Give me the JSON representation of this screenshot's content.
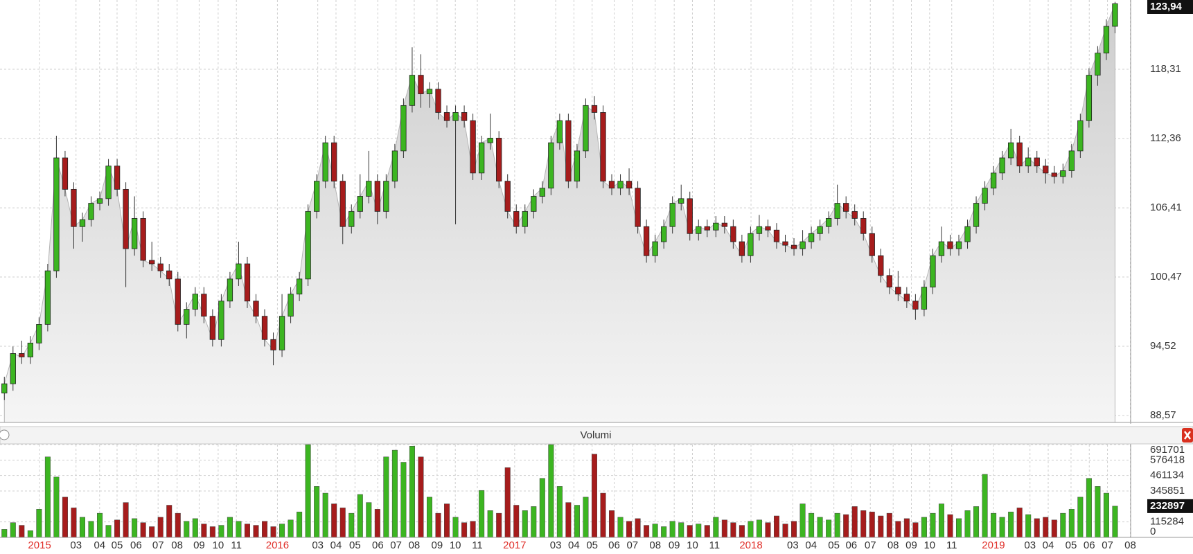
{
  "chart_data": {
    "type": "candlestick",
    "ohlc": [
      [
        90.5,
        91.9,
        89.9,
        91.3
      ],
      [
        91.3,
        94.5,
        90.7,
        93.9
      ],
      [
        93.9,
        95.0,
        93.0,
        93.6
      ],
      [
        93.6,
        95.4,
        93.0,
        94.8
      ],
      [
        94.8,
        97.0,
        94.2,
        96.4
      ],
      [
        96.4,
        101.6,
        95.8,
        101.0
      ],
      [
        101.0,
        112.6,
        100.4,
        110.7
      ],
      [
        110.7,
        111.3,
        107.4,
        108.0
      ],
      [
        108.0,
        108.6,
        102.9,
        104.8
      ],
      [
        104.8,
        106.0,
        103.5,
        105.4
      ],
      [
        105.4,
        107.4,
        104.8,
        106.8
      ],
      [
        106.8,
        107.8,
        106.2,
        107.2
      ],
      [
        107.2,
        110.6,
        106.6,
        110.0
      ],
      [
        110.0,
        110.6,
        107.4,
        108.0
      ],
      [
        108.0,
        108.6,
        99.6,
        102.9
      ],
      [
        102.9,
        107.4,
        102.3,
        105.5
      ],
      [
        105.5,
        106.1,
        101.3,
        101.9
      ],
      [
        101.9,
        103.5,
        101.0,
        101.6
      ],
      [
        101.6,
        102.2,
        100.4,
        101.0
      ],
      [
        101.0,
        101.6,
        99.7,
        100.3
      ],
      [
        100.3,
        100.9,
        95.8,
        96.4
      ],
      [
        96.4,
        98.3,
        95.2,
        97.7
      ],
      [
        97.7,
        99.6,
        97.1,
        99.0
      ],
      [
        99.0,
        99.6,
        96.5,
        97.1
      ],
      [
        97.1,
        97.7,
        94.5,
        95.1
      ],
      [
        95.1,
        99.0,
        94.5,
        98.4
      ],
      [
        98.4,
        100.9,
        97.8,
        100.3
      ],
      [
        100.3,
        103.5,
        99.7,
        101.6
      ],
      [
        101.6,
        102.2,
        97.8,
        98.4
      ],
      [
        98.4,
        99.0,
        96.5,
        97.1
      ],
      [
        97.1,
        97.7,
        94.5,
        95.1
      ],
      [
        95.1,
        95.7,
        92.9,
        94.2
      ],
      [
        94.2,
        99.0,
        93.6,
        97.1
      ],
      [
        97.1,
        99.6,
        96.5,
        99.0
      ],
      [
        99.0,
        100.9,
        98.4,
        100.3
      ],
      [
        100.3,
        106.7,
        99.7,
        106.1
      ],
      [
        106.1,
        109.3,
        105.5,
        108.7
      ],
      [
        108.7,
        112.6,
        108.1,
        112.0
      ],
      [
        112.0,
        112.6,
        108.1,
        108.7
      ],
      [
        108.7,
        109.3,
        103.3,
        104.8
      ],
      [
        104.8,
        106.7,
        104.2,
        106.1
      ],
      [
        106.1,
        109.3,
        105.5,
        107.4
      ],
      [
        107.4,
        111.3,
        106.8,
        108.7
      ],
      [
        108.7,
        109.3,
        105.0,
        106.1
      ],
      [
        106.1,
        109.3,
        105.5,
        108.7
      ],
      [
        108.7,
        111.9,
        108.1,
        111.3
      ],
      [
        111.3,
        115.8,
        110.7,
        115.2
      ],
      [
        115.2,
        120.2,
        114.6,
        117.8
      ],
      [
        117.8,
        119.6,
        115.0,
        116.2
      ],
      [
        116.2,
        117.2,
        115.0,
        116.6
      ],
      [
        116.6,
        117.2,
        114.0,
        114.6
      ],
      [
        114.6,
        115.2,
        113.3,
        113.9
      ],
      [
        113.9,
        115.2,
        105.0,
        114.6
      ],
      [
        114.6,
        115.2,
        113.3,
        113.9
      ],
      [
        113.9,
        114.5,
        108.8,
        109.4
      ],
      [
        109.4,
        112.6,
        108.8,
        112.0
      ],
      [
        112.0,
        114.5,
        111.4,
        112.4
      ],
      [
        112.4,
        113.0,
        108.1,
        108.7
      ],
      [
        108.7,
        109.3,
        105.5,
        106.1
      ],
      [
        106.1,
        106.7,
        104.2,
        104.8
      ],
      [
        104.8,
        106.7,
        104.2,
        106.1
      ],
      [
        106.1,
        108.0,
        105.5,
        107.4
      ],
      [
        107.4,
        108.7,
        106.8,
        108.1
      ],
      [
        108.1,
        112.6,
        107.5,
        112.0
      ],
      [
        112.0,
        114.5,
        111.4,
        113.9
      ],
      [
        113.9,
        114.5,
        108.1,
        108.7
      ],
      [
        108.7,
        111.9,
        108.1,
        111.3
      ],
      [
        111.3,
        115.8,
        110.7,
        115.2
      ],
      [
        115.2,
        116.0,
        114.0,
        114.6
      ],
      [
        114.6,
        115.2,
        108.1,
        108.7
      ],
      [
        108.7,
        109.3,
        107.5,
        108.1
      ],
      [
        108.1,
        109.3,
        107.5,
        108.7
      ],
      [
        108.7,
        109.8,
        107.5,
        108.1
      ],
      [
        108.1,
        108.7,
        104.2,
        104.8
      ],
      [
        104.8,
        105.4,
        101.7,
        102.3
      ],
      [
        102.3,
        104.1,
        101.7,
        103.5
      ],
      [
        103.5,
        105.4,
        102.9,
        104.8
      ],
      [
        104.8,
        107.4,
        104.2,
        106.8
      ],
      [
        106.8,
        108.4,
        106.2,
        107.2
      ],
      [
        107.2,
        107.8,
        103.6,
        104.2
      ],
      [
        104.2,
        105.4,
        103.6,
        104.8
      ],
      [
        104.8,
        105.4,
        103.9,
        104.5
      ],
      [
        104.5,
        105.7,
        103.9,
        105.1
      ],
      [
        105.1,
        105.7,
        104.2,
        104.8
      ],
      [
        104.8,
        105.4,
        102.9,
        103.5
      ],
      [
        103.5,
        104.1,
        101.7,
        102.3
      ],
      [
        102.3,
        104.8,
        101.7,
        104.2
      ],
      [
        104.2,
        105.8,
        103.6,
        104.8
      ],
      [
        104.8,
        105.4,
        103.9,
        104.5
      ],
      [
        104.5,
        105.1,
        102.9,
        103.5
      ],
      [
        103.5,
        104.1,
        102.6,
        103.2
      ],
      [
        103.2,
        103.8,
        102.3,
        102.9
      ],
      [
        102.9,
        104.5,
        102.3,
        103.5
      ],
      [
        103.5,
        104.8,
        102.9,
        104.2
      ],
      [
        104.2,
        105.4,
        103.6,
        104.8
      ],
      [
        104.8,
        106.1,
        104.2,
        105.5
      ],
      [
        105.5,
        108.4,
        104.9,
        106.8
      ],
      [
        106.8,
        107.4,
        105.5,
        106.1
      ],
      [
        106.1,
        106.7,
        104.9,
        105.5
      ],
      [
        105.5,
        106.1,
        103.6,
        104.2
      ],
      [
        104.2,
        104.8,
        101.7,
        102.3
      ],
      [
        102.3,
        102.9,
        100.0,
        100.6
      ],
      [
        100.6,
        101.2,
        99.0,
        99.6
      ],
      [
        99.6,
        101.0,
        98.4,
        99.0
      ],
      [
        99.0,
        99.6,
        97.8,
        98.4
      ],
      [
        98.4,
        99.0,
        96.8,
        97.7
      ],
      [
        97.7,
        100.2,
        97.1,
        99.6
      ],
      [
        99.6,
        102.9,
        99.0,
        102.3
      ],
      [
        102.3,
        104.8,
        101.7,
        103.5
      ],
      [
        103.5,
        104.1,
        102.3,
        102.9
      ],
      [
        102.9,
        104.1,
        102.3,
        103.5
      ],
      [
        103.5,
        105.4,
        102.9,
        104.8
      ],
      [
        104.8,
        107.4,
        104.2,
        106.8
      ],
      [
        106.8,
        108.7,
        106.2,
        108.1
      ],
      [
        108.1,
        110.0,
        107.5,
        109.4
      ],
      [
        109.4,
        111.3,
        108.8,
        110.7
      ],
      [
        110.7,
        113.2,
        110.1,
        112.0
      ],
      [
        112.0,
        112.6,
        109.4,
        110.0
      ],
      [
        110.0,
        111.6,
        109.4,
        110.7
      ],
      [
        110.7,
        111.3,
        109.4,
        110.0
      ],
      [
        110.0,
        110.6,
        108.5,
        109.4
      ],
      [
        109.4,
        110.0,
        108.5,
        109.1
      ],
      [
        109.1,
        110.2,
        108.5,
        109.6
      ],
      [
        109.6,
        111.9,
        109.0,
        111.3
      ],
      [
        111.3,
        114.5,
        110.7,
        113.9
      ],
      [
        113.9,
        118.4,
        113.3,
        117.8
      ],
      [
        117.8,
        120.3,
        116.9,
        119.7
      ],
      [
        119.7,
        122.6,
        119.1,
        122.0
      ],
      [
        122.0,
        124.1,
        121.4,
        123.94
      ]
    ],
    "up_color": "#3cb521",
    "down_color": "#a61c1c",
    "grid": true,
    "ylim": [
      87.98,
      124.26
    ],
    "yticks": [
      {
        "value": 88.57,
        "label": "88,57"
      },
      {
        "value": 94.52,
        "label": "94,52"
      },
      {
        "value": 100.47,
        "label": "100,47"
      },
      {
        "value": 106.41,
        "label": "106,41"
      },
      {
        "value": 112.36,
        "label": "112,36"
      },
      {
        "value": 118.31,
        "label": "118,31"
      }
    ],
    "last_price_label": "123,94",
    "xlim": [
      0,
      130.3
    ],
    "xticks": [
      {
        "value": 4.56,
        "label": "2015"
      },
      {
        "value": 8.76,
        "label": "03"
      },
      {
        "value": 11.48,
        "label": "04"
      },
      {
        "value": 13.49,
        "label": "05"
      },
      {
        "value": 15.68,
        "label": "06"
      },
      {
        "value": 18.22,
        "label": "07"
      },
      {
        "value": 20.41,
        "label": "08"
      },
      {
        "value": 22.95,
        "label": "09"
      },
      {
        "value": 25.14,
        "label": "10"
      },
      {
        "value": 27.24,
        "label": "11"
      },
      {
        "value": 31.97,
        "label": "2016"
      },
      {
        "value": 36.62,
        "label": "03"
      },
      {
        "value": 38.72,
        "label": "04"
      },
      {
        "value": 40.91,
        "label": "05"
      },
      {
        "value": 43.54,
        "label": "06"
      },
      {
        "value": 45.64,
        "label": "07"
      },
      {
        "value": 47.74,
        "label": "08"
      },
      {
        "value": 50.37,
        "label": "09"
      },
      {
        "value": 52.47,
        "label": "10"
      },
      {
        "value": 55.01,
        "label": "11"
      },
      {
        "value": 59.31,
        "label": "2017"
      },
      {
        "value": 64.04,
        "label": "03"
      },
      {
        "value": 66.14,
        "label": "04"
      },
      {
        "value": 68.24,
        "label": "05"
      },
      {
        "value": 70.78,
        "label": "06"
      },
      {
        "value": 72.88,
        "label": "07"
      },
      {
        "value": 75.51,
        "label": "08"
      },
      {
        "value": 77.7,
        "label": "09"
      },
      {
        "value": 79.8,
        "label": "10"
      },
      {
        "value": 82.34,
        "label": "11"
      },
      {
        "value": 86.55,
        "label": "2018"
      },
      {
        "value": 91.37,
        "label": "03"
      },
      {
        "value": 93.47,
        "label": "04"
      },
      {
        "value": 96.1,
        "label": "05"
      },
      {
        "value": 98.11,
        "label": "06"
      },
      {
        "value": 100.3,
        "label": "07"
      },
      {
        "value": 102.93,
        "label": "08"
      },
      {
        "value": 105.03,
        "label": "09"
      },
      {
        "value": 107.13,
        "label": "10"
      },
      {
        "value": 109.68,
        "label": "11"
      },
      {
        "value": 114.49,
        "label": "2019"
      },
      {
        "value": 118.7,
        "label": "03"
      },
      {
        "value": 120.8,
        "label": "04"
      },
      {
        "value": 123.43,
        "label": "05"
      },
      {
        "value": 125.53,
        "label": "06"
      },
      {
        "value": 127.63,
        "label": "07"
      },
      {
        "value": 130.26,
        "label": "08"
      }
    ],
    "volume_panel": {
      "title": "Volumi",
      "ylim": [
        0,
        691701
      ],
      "yticks": [
        0,
        115284,
        345851,
        461134,
        576418,
        691701
      ],
      "last_label": "232897",
      "values": [
        60000,
        110000,
        90000,
        50000,
        210000,
        600000,
        450000,
        300000,
        220000,
        150000,
        120000,
        180000,
        90000,
        130000,
        260000,
        140000,
        110000,
        80000,
        150000,
        240000,
        180000,
        120000,
        140000,
        100000,
        80000,
        90000,
        150000,
        120000,
        100000,
        90000,
        120000,
        80000,
        100000,
        130000,
        190000,
        691701,
        380000,
        330000,
        250000,
        220000,
        180000,
        320000,
        260000,
        210000,
        600000,
        650000,
        560000,
        680000,
        600000,
        300000,
        180000,
        250000,
        150000,
        110000,
        120000,
        350000,
        200000,
        180000,
        520000,
        240000,
        200000,
        230000,
        440000,
        691701,
        380000,
        260000,
        240000,
        300000,
        620000,
        330000,
        200000,
        150000,
        120000,
        140000,
        90000,
        100000,
        80000,
        120000,
        110000,
        90000,
        100000,
        90000,
        150000,
        130000,
        110000,
        90000,
        120000,
        130000,
        110000,
        160000,
        100000,
        120000,
        250000,
        180000,
        150000,
        130000,
        180000,
        170000,
        230000,
        200000,
        190000,
        160000,
        180000,
        120000,
        140000,
        110000,
        150000,
        180000,
        250000,
        170000,
        140000,
        200000,
        230000,
        470000,
        180000,
        150000,
        190000,
        220000,
        170000,
        140000,
        150000,
        130000,
        180000,
        210000,
        300000,
        440000,
        380000,
        330000,
        232897
      ]
    }
  }
}
